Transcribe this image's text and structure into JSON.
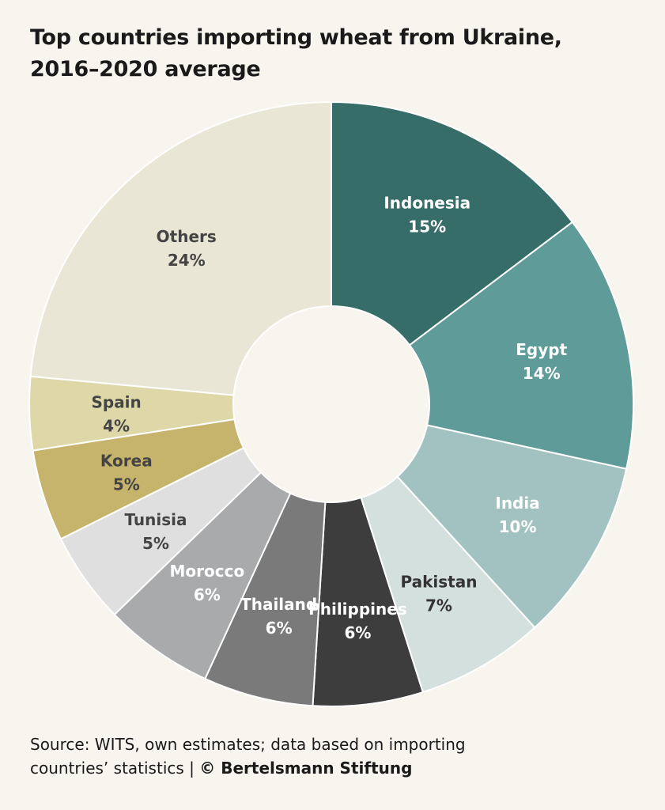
{
  "title": {
    "line1": "Top countries importing wheat from Ukraine,",
    "line2": "2016–2020 average"
  },
  "chart_data": {
    "type": "pie",
    "variant": "donut",
    "title": "Top countries importing wheat from Ukraine, 2016–2020 average",
    "slices": [
      {
        "label": "Indonesia",
        "value": 15,
        "display": "15%",
        "color": "#376d69",
        "text_color": "#ffffff"
      },
      {
        "label": "Egypt",
        "value": 14,
        "display": "14%",
        "color": "#5f9b98",
        "text_color": "#ffffff"
      },
      {
        "label": "India",
        "value": 10,
        "display": "10%",
        "color": "#a2c2c1",
        "text_color": "#ffffff"
      },
      {
        "label": "Pakistan",
        "value": 7,
        "display": "7%",
        "color": "#d3e0de",
        "text_color": "#333333"
      },
      {
        "label": "Philippines",
        "value": 6,
        "display": "6%",
        "color": "#3c3d3c",
        "text_color": "#ffffff"
      },
      {
        "label": "Thailand",
        "value": 6,
        "display": "6%",
        "color": "#797a79",
        "text_color": "#ffffff"
      },
      {
        "label": "Morocco",
        "value": 6,
        "display": "6%",
        "color": "#a8aaac",
        "text_color": "#ffffff"
      },
      {
        "label": "Tunisia",
        "value": 5,
        "display": "5%",
        "color": "#dfdfdf",
        "text_color": "#444444"
      },
      {
        "label": "Korea",
        "value": 5,
        "display": "5%",
        "color": "#c6b46c",
        "text_color": "#444444"
      },
      {
        "label": "Spain",
        "value": 4,
        "display": "4%",
        "color": "#ded8a9",
        "text_color": "#444444"
      },
      {
        "label": "Others",
        "value": 24,
        "display": "24%",
        "color": "#e9e6d5",
        "text_color": "#444444"
      }
    ]
  },
  "footer": {
    "source": "Source: WITS, own estimates; data based on importing",
    "source2": "countries’ statistics  |  ",
    "copyright": "© Bertelsmann Stiftung"
  }
}
